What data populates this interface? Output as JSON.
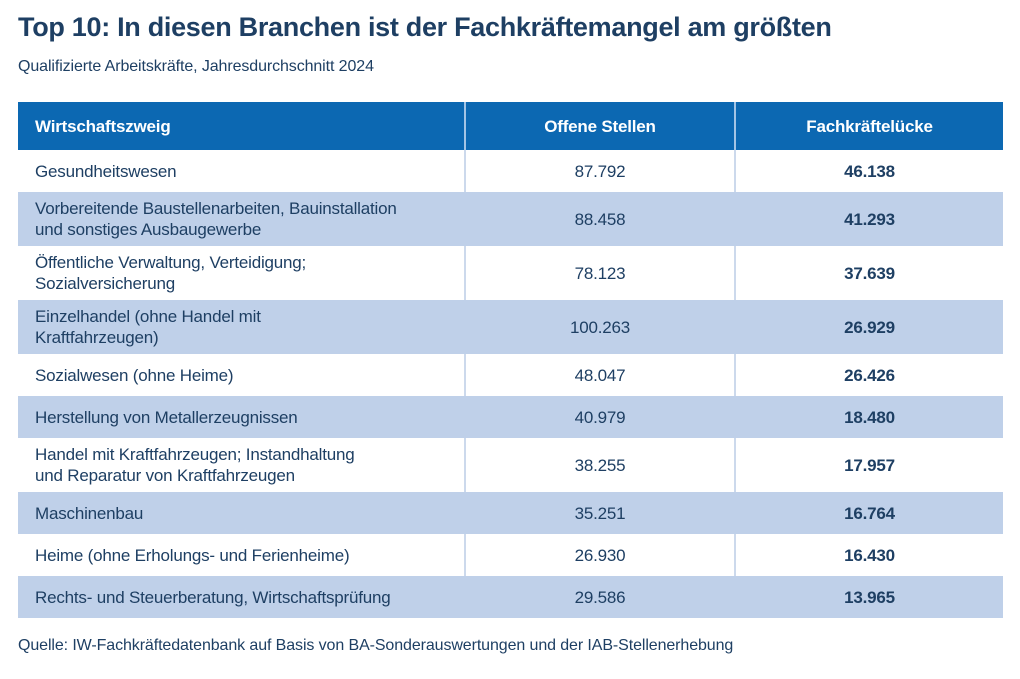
{
  "title": "Top 10: In diesen Branchen ist der Fachkräftemangel am größten",
  "subtitle": "Qualifizierte Arbeitskräfte, Jahresdurchschnitt 2024",
  "table": {
    "columns": [
      "Wirtschaftszweig",
      "Offene Stellen",
      "Fachkräftelücke"
    ],
    "rows": [
      {
        "branch": "Gesundheitswesen",
        "open": "87.792",
        "gap": "46.138"
      },
      {
        "branch": "Vorbereitende Baustellenarbeiten, Bauinstallation\nund sonstiges Ausbaugewerbe",
        "open": "88.458",
        "gap": "41.293"
      },
      {
        "branch": "Öffentliche Verwaltung, Verteidigung;\nSozialversicherung",
        "open": "78.123",
        "gap": "37.639"
      },
      {
        "branch": "Einzelhandel (ohne Handel mit\nKraftfahrzeugen)",
        "open": "100.263",
        "gap": "26.929"
      },
      {
        "branch": "Sozialwesen (ohne Heime)",
        "open": "48.047",
        "gap": "26.426"
      },
      {
        "branch": "Herstellung von Metallerzeugnissen",
        "open": "40.979",
        "gap": "18.480"
      },
      {
        "branch": "Handel mit Kraftfahrzeugen; Instandhaltung\nund Reparatur von Kraftfahrzeugen",
        "open": "38.255",
        "gap": "17.957"
      },
      {
        "branch": "Maschinenbau",
        "open": "35.251",
        "gap": "16.764"
      },
      {
        "branch": "Heime (ohne Erholungs- und Ferienheime)",
        "open": "26.930",
        "gap": "16.430"
      },
      {
        "branch": "Rechts- und Steuerberatung, Wirtschaftsprüfung",
        "open": "29.586",
        "gap": "13.965"
      }
    ]
  },
  "source": "Quelle: IW-Fachkräftedatenbank auf Basis von BA-Sonderauswertungen und der IAB-Stellenerhebung",
  "colors": {
    "header_bg": "#0c68b2",
    "zebra_bg": "#bfd0e9",
    "navy": "#1e3f63",
    "header_text": "#ffffff",
    "divider_header": "#a3c4e5",
    "divider_row": "#ccd9ec",
    "page_bg": "#ffffff"
  },
  "chart_data": {
    "type": "table",
    "title": "Top 10: In diesen Branchen ist der Fachkräftemangel am größten",
    "subtitle": "Qualifizierte Arbeitskräfte, Jahresdurchschnitt 2024",
    "columns": [
      "Wirtschaftszweig",
      "Offene Stellen",
      "Fachkräftelücke"
    ],
    "rows": [
      {
        "wirtschaftszweig": "Gesundheitswesen",
        "offene_stellen": 87792,
        "fachkraeftelueke": 46138
      },
      {
        "wirtschaftszweig": "Vorbereitende Baustellenarbeiten, Bauinstallation und sonstiges Ausbaugewerbe",
        "offene_stellen": 88458,
        "fachkraeftelueke": 41293
      },
      {
        "wirtschaftszweig": "Öffentliche Verwaltung, Verteidigung; Sozialversicherung",
        "offene_stellen": 78123,
        "fachkraeftelueke": 37639
      },
      {
        "wirtschaftszweig": "Einzelhandel (ohne Handel mit Kraftfahrzeugen)",
        "offene_stellen": 100263,
        "fachkraeftelueke": 26929
      },
      {
        "wirtschaftszweig": "Sozialwesen (ohne Heime)",
        "offene_stellen": 48047,
        "fachkraeftelueke": 26426
      },
      {
        "wirtschaftszweig": "Herstellung von Metallerzeugnissen",
        "offene_stellen": 40979,
        "fachkraeftelueke": 18480
      },
      {
        "wirtschaftszweig": "Handel mit Kraftfahrzeugen; Instandhaltung und Reparatur von Kraftfahrzeugen",
        "offene_stellen": 38255,
        "fachkraeftelueke": 17957
      },
      {
        "wirtschaftszweig": "Maschinenbau",
        "offene_stellen": 35251,
        "fachkraeftelueke": 16764
      },
      {
        "wirtschaftszweig": "Heime (ohne Erholungs- und Ferienheime)",
        "offene_stellen": 26930,
        "fachkraeftelueke": 16430
      },
      {
        "wirtschaftszweig": "Rechts- und Steuerberatung, Wirtschaftsprüfung",
        "offene_stellen": 29586,
        "fachkraeftelueke": 13965
      }
    ],
    "source": "Quelle: IW-Fachkräftedatenbank auf Basis von BA-Sonderauswertungen und der IAB-Stellenerhebung",
    "number_format": "de-DE (Punkt als Tausendertrennzeichen)"
  }
}
